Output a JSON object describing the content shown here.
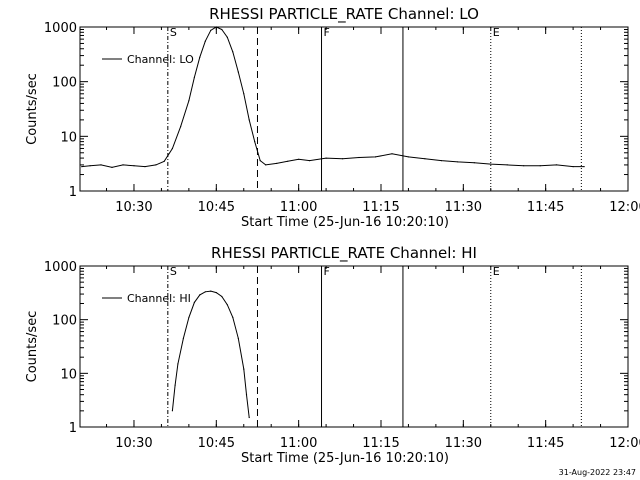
{
  "footer": {
    "timestamp": "31-Aug-2022 23:47"
  },
  "chart_data": [
    {
      "type": "line",
      "title": "RHESSI PARTICLE_RATE Channel: LO",
      "xlabel": "Start Time (25-Jun-16 10:20:10)",
      "ylabel": "Counts/sec",
      "yscale": "log",
      "ylim": [
        1,
        1000
      ],
      "xlim": [
        "10:20:10",
        "12:00:00"
      ],
      "x_ticks": [
        "10:30",
        "10:45",
        "11:00",
        "11:15",
        "11:30",
        "11:45",
        "12:00"
      ],
      "y_ticks": [
        "1",
        "10",
        "100",
        "1000"
      ],
      "legend": {
        "position": "top-left",
        "entries": [
          "Channel: LO"
        ]
      },
      "markers": [
        {
          "time": "10:36:10",
          "style": "dash-dot",
          "label": "S"
        },
        {
          "time": "10:52:30",
          "style": "dashed",
          "label": ""
        },
        {
          "time": "11:04:10",
          "style": "solid",
          "label": "F"
        },
        {
          "time": "11:19:00",
          "style": "solid",
          "label": ""
        },
        {
          "time": "11:35:00",
          "style": "dotted",
          "label": "E"
        },
        {
          "time": "11:51:30",
          "style": "dotted",
          "label": ""
        }
      ],
      "series": [
        {
          "name": "Channel: LO",
          "x": [
            "10:20:30",
            "10:22:00",
            "10:24:00",
            "10:26:00",
            "10:28:00",
            "10:30:00",
            "10:32:00",
            "10:34:00",
            "10:35:30",
            "10:37:00",
            "10:38:30",
            "10:40:00",
            "10:41:00",
            "10:42:00",
            "10:43:00",
            "10:44:00",
            "10:45:00",
            "10:46:00",
            "10:47:00",
            "10:48:00",
            "10:49:00",
            "10:50:00",
            "10:51:00",
            "10:52:00",
            "10:53:00",
            "10:54:00",
            "10:56:00",
            "10:58:00",
            "11:00:00",
            "11:02:00",
            "11:05:00",
            "11:08:00",
            "11:11:00",
            "11:14:00",
            "11:17:00",
            "11:20:00",
            "11:23:00",
            "11:26:00",
            "11:29:00",
            "11:32:00",
            "11:35:00",
            "11:38:00",
            "11:41:00",
            "11:44:00",
            "11:47:00",
            "11:50:00",
            "11:52:00"
          ],
          "y": [
            2.8,
            2.9,
            3.0,
            2.7,
            3.0,
            2.9,
            2.8,
            3.0,
            3.5,
            6,
            15,
            45,
            120,
            280,
            550,
            870,
            1000,
            900,
            650,
            350,
            150,
            60,
            20,
            8,
            3.6,
            3.0,
            3.2,
            3.5,
            3.8,
            3.6,
            4.0,
            3.9,
            4.1,
            4.2,
            4.8,
            4.2,
            3.9,
            3.6,
            3.4,
            3.3,
            3.1,
            3.0,
            2.9,
            2.9,
            3.0,
            2.8,
            2.8
          ]
        }
      ]
    },
    {
      "type": "line",
      "title": "RHESSI PARTICLE_RATE Channel: HI",
      "xlabel": "Start Time (25-Jun-16 10:20:10)",
      "ylabel": "Counts/sec",
      "yscale": "log",
      "ylim": [
        1,
        1000
      ],
      "xlim": [
        "10:20:10",
        "12:00:00"
      ],
      "x_ticks": [
        "10:30",
        "10:45",
        "11:00",
        "11:15",
        "11:30",
        "11:45",
        "12:00"
      ],
      "y_ticks": [
        "1",
        "10",
        "100",
        "1000"
      ],
      "legend": {
        "position": "top-left",
        "entries": [
          "Channel: HI"
        ]
      },
      "markers": [
        {
          "time": "10:36:10",
          "style": "dash-dot",
          "label": "S"
        },
        {
          "time": "10:52:30",
          "style": "dashed",
          "label": ""
        },
        {
          "time": "11:04:10",
          "style": "solid",
          "label": "F"
        },
        {
          "time": "11:19:00",
          "style": "solid",
          "label": ""
        },
        {
          "time": "11:35:00",
          "style": "dotted",
          "label": "E"
        },
        {
          "time": "11:51:30",
          "style": "dotted",
          "label": ""
        }
      ],
      "series": [
        {
          "name": "Channel: HI",
          "x": [
            "10:37:00",
            "10:37:30",
            "10:38:00",
            "10:39:00",
            "10:40:00",
            "10:41:00",
            "10:42:00",
            "10:43:00",
            "10:44:00",
            "10:45:00",
            "10:46:00",
            "10:47:00",
            "10:48:00",
            "10:49:00",
            "10:50:00",
            "10:50:30",
            "10:51:00"
          ],
          "y": [
            2.0,
            6,
            15,
            45,
            110,
            210,
            290,
            330,
            340,
            320,
            270,
            190,
            110,
            45,
            12,
            4,
            1.5
          ]
        }
      ]
    }
  ]
}
